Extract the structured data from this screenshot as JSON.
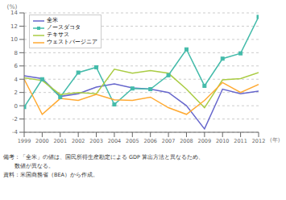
{
  "chart_data": {
    "type": "line",
    "x": [
      1999,
      2000,
      2001,
      2002,
      2003,
      2004,
      2005,
      2006,
      2007,
      2008,
      2009,
      2010,
      2011,
      2012
    ],
    "series": [
      {
        "name": "全米",
        "color": "#6666cc",
        "values": [
          4.5,
          4.1,
          1.4,
          1.8,
          2.8,
          3.3,
          2.7,
          2.5,
          2.0,
          0.0,
          -3.5,
          2.5,
          1.8,
          2.2
        ]
      },
      {
        "name": "ノースダコタ",
        "color": "#44bbaa",
        "marker": "square",
        "values": [
          -0.2,
          4.0,
          1.3,
          5.0,
          5.8,
          0.2,
          2.6,
          2.5,
          4.6,
          8.5,
          3.0,
          7.1,
          7.9,
          13.4
        ]
      },
      {
        "name": "テキサス",
        "color": "#aacc44",
        "values": [
          4.2,
          3.8,
          1.7,
          2.0,
          1.8,
          5.5,
          4.9,
          5.3,
          4.9,
          2.5,
          -0.3,
          3.9,
          4.1,
          5.0
        ]
      },
      {
        "name": "ウェストバージニア",
        "color": "#ffaa33",
        "values": [
          4.0,
          -1.3,
          1.1,
          0.8,
          1.7,
          0.9,
          0.8,
          1.3,
          -0.3,
          -1.3,
          0.8,
          3.5,
          2.0,
          3.2
        ]
      }
    ],
    "y_label": "(%)",
    "x_label": "(年)",
    "xlim": [
      1999,
      2012
    ],
    "xticks": [
      1999,
      2000,
      2001,
      2002,
      2003,
      2004,
      2005,
      2006,
      2007,
      2008,
      2009,
      2010,
      2011,
      2012
    ],
    "ylim": [
      -4,
      14
    ],
    "yticks": [
      -4,
      -2,
      0,
      2,
      4,
      6,
      8,
      10,
      12,
      14
    ],
    "grid": true,
    "legend": "upper left",
    "annotations": [
      "備考：「全米」の値は、国民所得生産勘定による GDP 算出方法と異なるため、",
      "　　数値が異なる。",
      "資料：米国商務省（BEA）から作成。"
    ]
  }
}
